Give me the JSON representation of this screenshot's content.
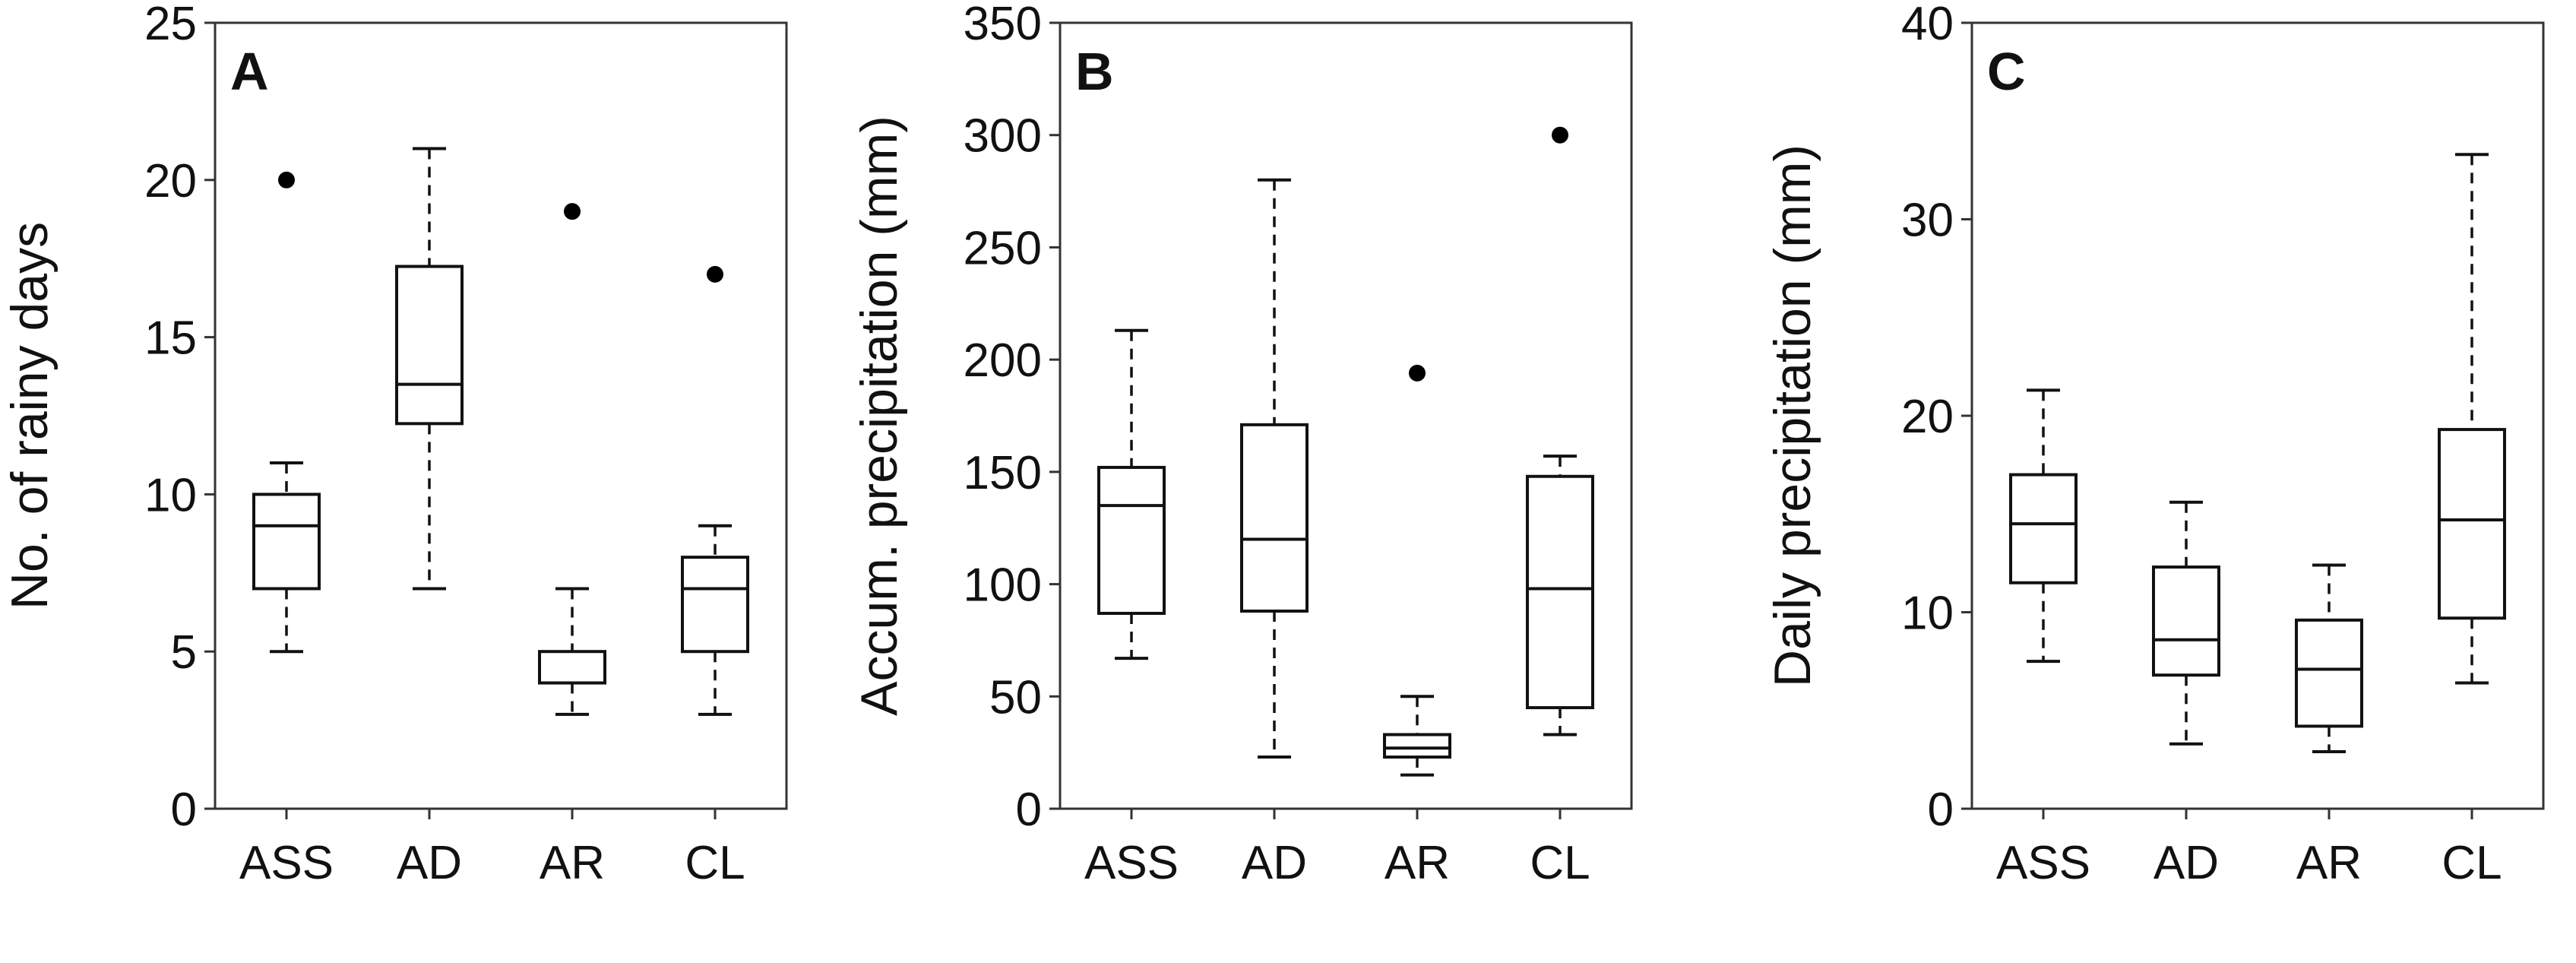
{
  "chart_data": [
    {
      "type": "box",
      "panel_label": "A",
      "ylabel": "No. of rainy days",
      "xlabel": "",
      "ylim": [
        0,
        25
      ],
      "yticks": [
        0,
        5,
        10,
        15,
        20,
        25
      ],
      "categories": [
        "ASS",
        "AD",
        "AR",
        "CL"
      ],
      "boxes": [
        {
          "category": "ASS",
          "whisker_low": 5,
          "q1": 7,
          "median": 9,
          "q3": 10,
          "whisker_high": 11,
          "outliers": [
            20
          ]
        },
        {
          "category": "AD",
          "whisker_low": 7,
          "q1": 12.25,
          "median": 13.5,
          "q3": 17.25,
          "whisker_high": 21,
          "outliers": []
        },
        {
          "category": "AR",
          "whisker_low": 3,
          "q1": 4,
          "median": 4,
          "q3": 5,
          "whisker_high": 7,
          "outliers": [
            19
          ]
        },
        {
          "category": "CL",
          "whisker_low": 3,
          "q1": 5,
          "median": 7,
          "q3": 8,
          "whisker_high": 9,
          "outliers": [
            17
          ]
        }
      ]
    },
    {
      "type": "box",
      "panel_label": "B",
      "ylabel": "Accum. precipitation (mm)",
      "xlabel": "",
      "ylim": [
        0,
        350
      ],
      "yticks": [
        0,
        50,
        100,
        150,
        200,
        250,
        300,
        350
      ],
      "categories": [
        "ASS",
        "AD",
        "AR",
        "CL"
      ],
      "boxes": [
        {
          "category": "ASS",
          "whisker_low": 67,
          "q1": 87,
          "median": 135,
          "q3": 152,
          "whisker_high": 213,
          "outliers": []
        },
        {
          "category": "AD",
          "whisker_low": 23,
          "q1": 88,
          "median": 120,
          "q3": 171,
          "whisker_high": 280,
          "outliers": []
        },
        {
          "category": "AR",
          "whisker_low": 15,
          "q1": 23,
          "median": 27,
          "q3": 33,
          "whisker_high": 50,
          "outliers": [
            194
          ]
        },
        {
          "category": "CL",
          "whisker_low": 33,
          "q1": 45,
          "median": 98,
          "q3": 148,
          "whisker_high": 157,
          "outliers": [
            300
          ]
        }
      ]
    },
    {
      "type": "box",
      "panel_label": "C",
      "ylabel": "Daily precipitation (mm)",
      "xlabel": "",
      "ylim": [
        0,
        40
      ],
      "yticks": [
        0,
        10,
        20,
        30,
        40
      ],
      "categories": [
        "ASS",
        "AD",
        "AR",
        "CL"
      ],
      "boxes": [
        {
          "category": "ASS",
          "whisker_low": 7.5,
          "q1": 11.5,
          "median": 14.5,
          "q3": 17,
          "whisker_high": 21.3,
          "outliers": []
        },
        {
          "category": "AD",
          "whisker_low": 3.3,
          "q1": 6.8,
          "median": 8.6,
          "q3": 12.3,
          "whisker_high": 15.6,
          "outliers": []
        },
        {
          "category": "AR",
          "whisker_low": 2.9,
          "q1": 4.2,
          "median": 7.1,
          "q3": 9.6,
          "whisker_high": 12.4,
          "outliers": []
        },
        {
          "category": "CL",
          "whisker_low": 6.4,
          "q1": 9.7,
          "median": 14.7,
          "q3": 19.3,
          "whisker_high": 33.3,
          "outliers": []
        }
      ]
    }
  ]
}
